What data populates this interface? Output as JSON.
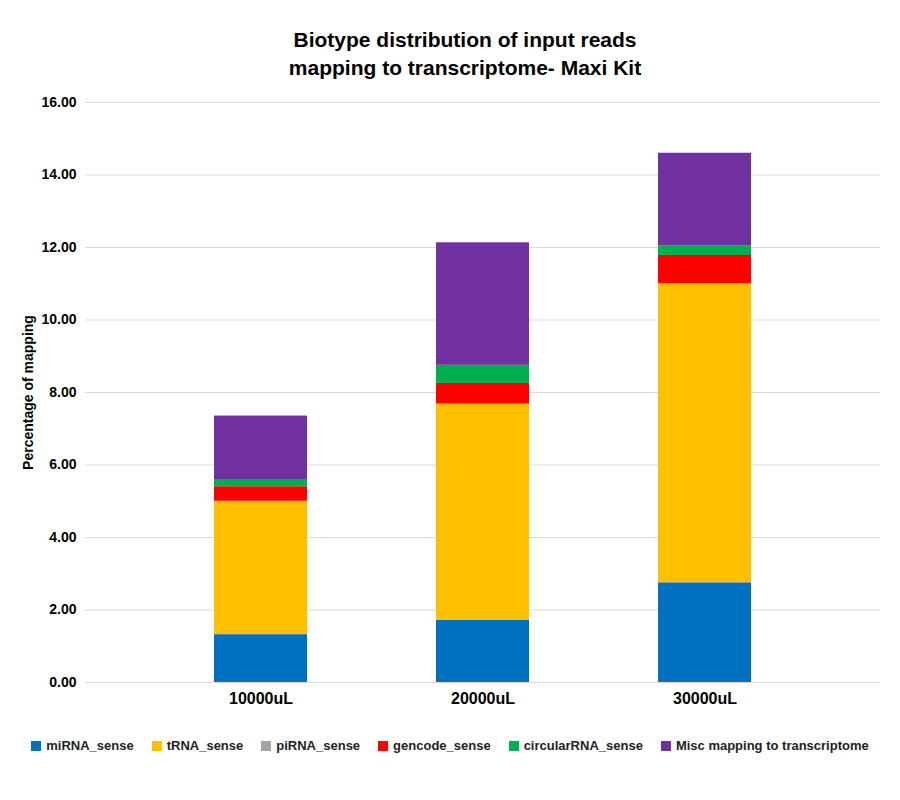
{
  "chart_data": {
    "type": "bar",
    "title": "Biotype distribution of input reads mapping to transcriptome- Maxi Kit",
    "y_label": "Percentage of mapping",
    "categories": [
      "10000uL",
      "20000uL",
      "30000uL"
    ],
    "stacked": true,
    "grid": true,
    "legend": "bottom",
    "ylim": [
      0,
      16
    ],
    "yticks": [
      {
        "value": 0,
        "label": "0.00"
      },
      {
        "value": 2,
        "label": "2.00"
      },
      {
        "value": 4,
        "label": "4.00"
      },
      {
        "value": 6,
        "label": "6.00"
      },
      {
        "value": 8,
        "label": "8.00"
      },
      {
        "value": 10,
        "label": "10.00"
      },
      {
        "value": 12,
        "label": "12.00"
      },
      {
        "value": 14,
        "label": "14.00"
      },
      {
        "value": 16,
        "label": "16.00"
      }
    ],
    "series": [
      {
        "name": "miRNA_sense",
        "color": "#0070c0",
        "values": [
          1.32,
          1.72,
          2.75
        ]
      },
      {
        "name": "tRNA_sense",
        "color": "#ffc000",
        "values": [
          3.68,
          5.96,
          8.25
        ]
      },
      {
        "name": "piRNA_sense",
        "color": "#a5a5a5",
        "values": [
          0,
          0,
          0
        ]
      },
      {
        "name": "gencode_sense",
        "color": "#ff0000",
        "values": [
          0.4,
          0.57,
          0.78
        ]
      },
      {
        "name": "circularRNA_sense",
        "color": "#00b050",
        "values": [
          0.2,
          0.5,
          0.27
        ]
      },
      {
        "name": "Misc mapping to transcriptome",
        "color": "#7030a0",
        "values": [
          1.75,
          3.38,
          2.55
        ]
      }
    ]
  }
}
